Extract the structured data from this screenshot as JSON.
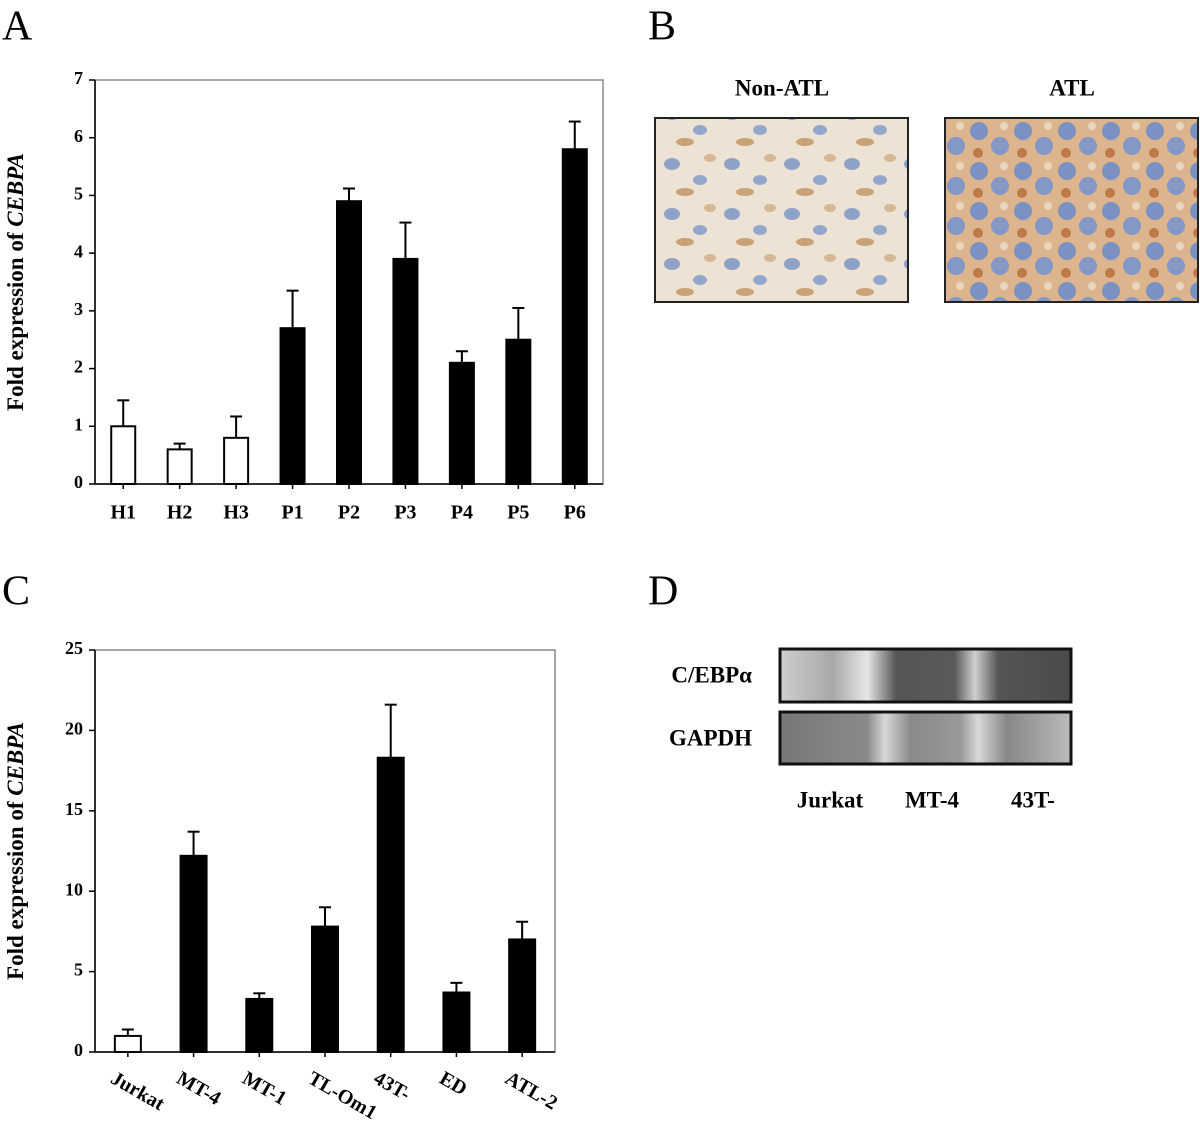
{
  "panels": {
    "a": "A",
    "b": "B",
    "c": "C",
    "d": "D"
  },
  "histology": {
    "left_title": "Non-ATL",
    "right_title": "ATL"
  },
  "blot": {
    "rows": [
      "C/EBPα",
      "GAPDH"
    ],
    "lanes": [
      "Jurkat",
      "MT-4",
      "43T-"
    ]
  },
  "chart_data": [
    {
      "type": "bar",
      "ylabel": "Fold expression of ",
      "ylabel_italic": "CEBPA",
      "categories": [
        "H1",
        "H2",
        "H3",
        "P1",
        "P2",
        "P3",
        "P4",
        "P5",
        "P6"
      ],
      "values": [
        1,
        0.6,
        0.8,
        2.7,
        4.9,
        3.9,
        2.1,
        2.5,
        5.8
      ],
      "errors": [
        0.45,
        0.1,
        0.37,
        0.65,
        0.22,
        0.63,
        0.2,
        0.55,
        0.48
      ],
      "colors": [
        "#ffffff",
        "#ffffff",
        "#ffffff",
        "#000000",
        "#000000",
        "#000000",
        "#000000",
        "#000000",
        "#000000"
      ],
      "ylim": [
        0,
        7
      ],
      "yticks": [
        0,
        1,
        2,
        3,
        4,
        5,
        6,
        7
      ],
      "grid": false
    },
    {
      "type": "bar",
      "ylabel": "Fold expression of ",
      "ylabel_italic": "CEBPA",
      "categories": [
        "Jurkat",
        "MT-4",
        "MT-1",
        "TL-Om1",
        "43T-",
        "ED",
        "ATL-2"
      ],
      "values": [
        1,
        12.2,
        3.3,
        7.8,
        18.3,
        3.7,
        7
      ],
      "errors": [
        0.4,
        1.5,
        0.35,
        1.2,
        3.3,
        0.6,
        1.1
      ],
      "colors": [
        "#ffffff",
        "#000000",
        "#000000",
        "#000000",
        "#000000",
        "#000000",
        "#000000"
      ],
      "ylim": [
        0,
        25
      ],
      "yticks": [
        0,
        5,
        10,
        15,
        20,
        25
      ],
      "grid": false
    }
  ]
}
